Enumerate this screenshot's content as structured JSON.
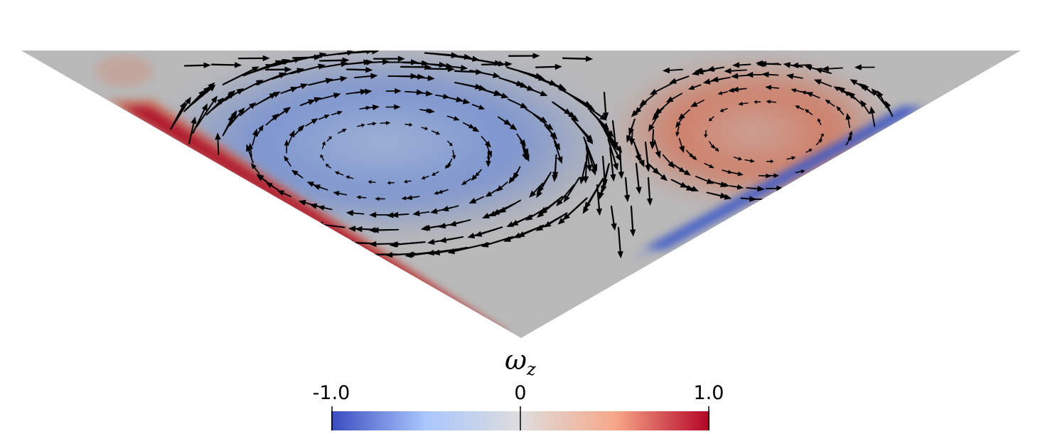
{
  "colorbar": {
    "title": "ω",
    "title_subscript": "z",
    "min_label": "-1.0",
    "mid_label": "0",
    "max_label": "1.0",
    "range": [
      -1.0,
      1.0
    ],
    "colormap": [
      "#3b4cc0",
      "#aac7fd",
      "#dddddd",
      "#f7a889",
      "#b40426"
    ]
  },
  "colors": {
    "neutral": "#b9b9b9",
    "blue": "#5b76c9",
    "red": "#c9634a",
    "arrows": "#000000"
  }
}
